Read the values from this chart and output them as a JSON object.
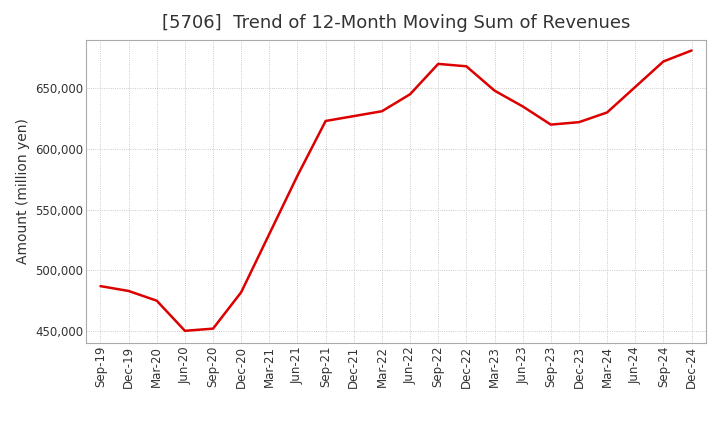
{
  "title": "[5706]  Trend of 12-Month Moving Sum of Revenues",
  "ylabel": "Amount (million yen)",
  "line_color": "#dd0000",
  "background_color": "#ffffff",
  "plot_bg_color": "#ffffff",
  "grid_color": "#bbbbbb",
  "x_labels": [
    "Sep-19",
    "Dec-19",
    "Mar-20",
    "Jun-20",
    "Sep-20",
    "Dec-20",
    "Mar-21",
    "Jun-21",
    "Sep-21",
    "Dec-21",
    "Mar-22",
    "Jun-22",
    "Sep-22",
    "Dec-22",
    "Mar-23",
    "Jun-23",
    "Sep-23",
    "Dec-23",
    "Mar-24",
    "Jun-24",
    "Sep-24",
    "Dec-24"
  ],
  "y_values": [
    487000,
    483000,
    475000,
    450200,
    452000,
    482000,
    530000,
    578000,
    623000,
    627000,
    631000,
    645000,
    670000,
    668000,
    648000,
    635000,
    620000,
    622000,
    630000,
    651000,
    672000,
    681000
  ],
  "ylim": [
    440000,
    690000
  ],
  "yticks": [
    450000,
    500000,
    550000,
    600000,
    650000
  ],
  "title_fontsize": 13,
  "tick_fontsize": 8.5,
  "ylabel_fontsize": 10,
  "title_color": "#333333"
}
